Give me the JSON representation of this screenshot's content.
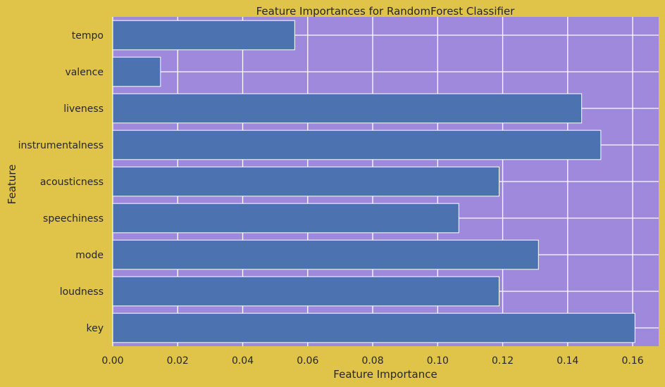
{
  "chart_data": {
    "type": "bar",
    "orientation": "horizontal",
    "title": "Feature Importances for RandomForest Classifier",
    "xlabel": "Feature Importance",
    "ylabel": "Feature",
    "categories": [
      "tempo",
      "valence",
      "liveness",
      "instrumentalness",
      "acousticness",
      "speechiness",
      "mode",
      "loudness",
      "key"
    ],
    "values": [
      0.056,
      0.0147,
      0.1443,
      0.1502,
      0.1189,
      0.1065,
      0.131,
      0.1189,
      0.1607
    ],
    "xlim": [
      0.0,
      0.168
    ],
    "xticks": [
      0.0,
      0.02,
      0.04,
      0.06,
      0.08,
      0.1,
      0.12,
      0.14,
      0.16
    ],
    "xtick_labels": [
      "0.00",
      "0.02",
      "0.04",
      "0.06",
      "0.08",
      "0.10",
      "0.12",
      "0.14",
      "0.16"
    ],
    "grid": true,
    "colors": {
      "figure_background": "#e0c44a",
      "plot_background": "#9e89dc",
      "bar": "#4c72b0",
      "grid": "#ffffff"
    }
  }
}
